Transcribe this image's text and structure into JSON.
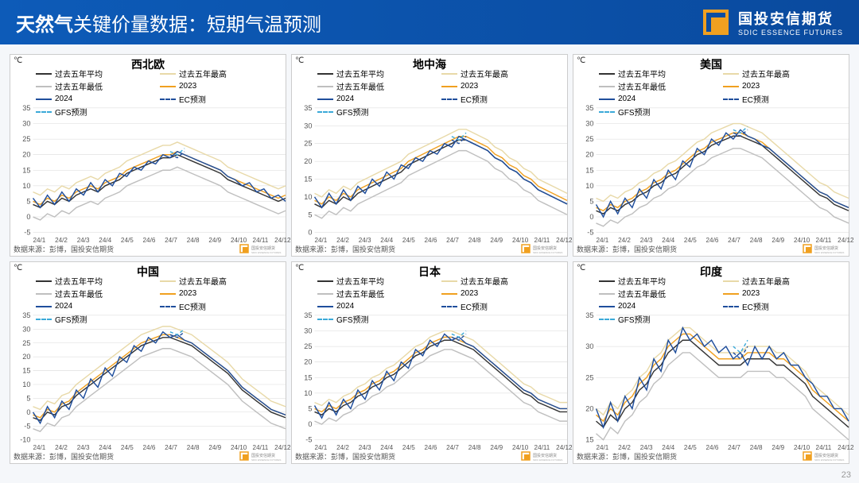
{
  "header": {
    "title_bold": "天然气",
    "title_rest": "关键价量数据：短期气温预测",
    "logo_name": "国投安信期货",
    "logo_sub": "SDIC ESSENCE FUTURES",
    "logo_border": "#f0a020",
    "bg_start": "#0d5bb8",
    "bg_end": "#0a4a9e"
  },
  "page_number": "23",
  "common": {
    "y_unit": "℃",
    "source_label": "数据来源：彭博，国投安信期货",
    "mini_logo_label": "国投安信期货",
    "x_labels": [
      "24/1",
      "24/2",
      "24/3",
      "24/4",
      "24/5",
      "24/6",
      "24/7",
      "24/8",
      "24/9",
      "24/10",
      "24/11",
      "24/12"
    ],
    "legend": [
      {
        "label": "过去五年平均",
        "color": "#333333",
        "dashed": false
      },
      {
        "label": "过去五年最高",
        "color": "#e8d9a8",
        "dashed": false
      },
      {
        "label": "过去五年最低",
        "color": "#bfbfbf",
        "dashed": false
      },
      {
        "label": "2023",
        "color": "#f0a020",
        "dashed": false
      },
      {
        "label": "2024",
        "color": "#1f4e9c",
        "dashed": false
      },
      {
        "label": "EC预测",
        "color": "#1f4e9c",
        "dashed": true
      },
      {
        "label": "GFS预测",
        "color": "#3aa9d8",
        "dashed": true
      }
    ],
    "grid_color": "#d9d9d9",
    "axis_color": "#666666",
    "tick_fontsize": 9,
    "plot_bg": "#ffffff"
  },
  "panels": [
    {
      "title": "西北欧",
      "ylim": [
        -5,
        35
      ],
      "ytick_step": 5,
      "series": {
        "avg": [
          4,
          3,
          5,
          4,
          6,
          5,
          7,
          8,
          9,
          8,
          10,
          11,
          12,
          14,
          15,
          16,
          17,
          18,
          19,
          19,
          20,
          19,
          18,
          17,
          16,
          15,
          14,
          12,
          11,
          10,
          9,
          8,
          7,
          6,
          5,
          6
        ],
        "high": [
          8,
          7,
          9,
          8,
          10,
          9,
          11,
          12,
          13,
          12,
          14,
          15,
          16,
          18,
          19,
          20,
          21,
          22,
          23,
          23,
          24,
          23,
          22,
          21,
          20,
          19,
          18,
          16,
          15,
          14,
          13,
          12,
          11,
          10,
          9,
          10
        ],
        "low": [
          0,
          -1,
          1,
          0,
          2,
          1,
          3,
          4,
          5,
          4,
          6,
          7,
          8,
          10,
          11,
          12,
          13,
          14,
          15,
          15,
          16,
          15,
          14,
          13,
          12,
          11,
          10,
          8,
          7,
          6,
          5,
          4,
          3,
          2,
          1,
          2
        ],
        "y2023": [
          5,
          4,
          6,
          5,
          7,
          6,
          8,
          9,
          10,
          9,
          11,
          12,
          13,
          15,
          16,
          17,
          18,
          19,
          20,
          20,
          21,
          20,
          19,
          18,
          17,
          16,
          15,
          13,
          12,
          11,
          10,
          9,
          8,
          7,
          6,
          7
        ],
        "y2024": [
          6,
          3,
          7,
          4,
          8,
          5,
          9,
          7,
          11,
          8,
          12,
          10,
          14,
          13,
          16,
          15,
          18,
          17,
          20,
          19,
          21,
          20,
          19,
          18,
          17,
          16,
          15,
          13,
          12,
          10,
          11,
          8,
          9,
          6,
          7,
          5
        ],
        "ec": [
          20,
          19,
          21
        ],
        "gfs": [
          21,
          20,
          22
        ]
      }
    },
    {
      "title": "地中海",
      "ylim": [
        0,
        35
      ],
      "ytick_step": 5,
      "series": {
        "avg": [
          8,
          7,
          9,
          8,
          10,
          9,
          11,
          12,
          13,
          14,
          15,
          16,
          17,
          19,
          20,
          21,
          22,
          23,
          24,
          25,
          26,
          26,
          25,
          24,
          23,
          21,
          20,
          18,
          17,
          15,
          14,
          12,
          11,
          10,
          9,
          8
        ],
        "high": [
          11,
          10,
          12,
          11,
          13,
          12,
          14,
          15,
          16,
          17,
          18,
          19,
          20,
          22,
          23,
          24,
          25,
          26,
          27,
          28,
          29,
          29,
          28,
          27,
          26,
          24,
          23,
          21,
          20,
          18,
          17,
          15,
          14,
          13,
          12,
          11
        ],
        "low": [
          5,
          4,
          6,
          5,
          7,
          6,
          8,
          9,
          10,
          11,
          12,
          13,
          14,
          16,
          17,
          18,
          19,
          20,
          21,
          22,
          23,
          23,
          22,
          21,
          20,
          18,
          17,
          15,
          14,
          12,
          11,
          9,
          8,
          7,
          6,
          5
        ],
        "y2023": [
          9,
          8,
          10,
          9,
          11,
          10,
          12,
          13,
          14,
          15,
          16,
          17,
          18,
          20,
          21,
          22,
          23,
          24,
          25,
          26,
          27,
          27,
          26,
          25,
          24,
          22,
          21,
          19,
          18,
          16,
          15,
          13,
          12,
          11,
          10,
          9
        ],
        "y2024": [
          10,
          7,
          11,
          8,
          12,
          9,
          13,
          11,
          15,
          13,
          17,
          15,
          19,
          18,
          21,
          20,
          23,
          22,
          25,
          24,
          27,
          26,
          25,
          24,
          23,
          21,
          20,
          18,
          17,
          15,
          14,
          12,
          11,
          10,
          9,
          8
        ],
        "ec": [
          26,
          25,
          27
        ],
        "gfs": [
          27,
          26,
          28
        ]
      }
    },
    {
      "title": "美国",
      "ylim": [
        -5,
        35
      ],
      "ytick_step": 5,
      "series": {
        "avg": [
          2,
          1,
          3,
          2,
          4,
          5,
          7,
          8,
          10,
          11,
          13,
          14,
          16,
          18,
          20,
          21,
          23,
          24,
          25,
          26,
          26,
          25,
          24,
          23,
          21,
          19,
          17,
          15,
          13,
          11,
          9,
          7,
          6,
          4,
          3,
          2
        ],
        "high": [
          6,
          5,
          7,
          6,
          8,
          9,
          11,
          12,
          14,
          15,
          17,
          18,
          20,
          22,
          24,
          25,
          27,
          28,
          29,
          30,
          30,
          29,
          28,
          27,
          25,
          23,
          21,
          19,
          17,
          15,
          13,
          11,
          10,
          8,
          7,
          6
        ],
        "low": [
          -2,
          -3,
          -1,
          -2,
          0,
          1,
          3,
          4,
          6,
          7,
          9,
          10,
          12,
          14,
          16,
          17,
          19,
          20,
          21,
          22,
          22,
          21,
          20,
          19,
          17,
          15,
          13,
          11,
          9,
          7,
          5,
          3,
          2,
          0,
          -1,
          -2
        ],
        "y2023": [
          3,
          2,
          4,
          3,
          5,
          6,
          8,
          9,
          11,
          12,
          14,
          15,
          17,
          19,
          21,
          22,
          24,
          25,
          26,
          27,
          27,
          26,
          25,
          24,
          22,
          20,
          18,
          16,
          14,
          12,
          10,
          8,
          7,
          5,
          4,
          3
        ],
        "y2024": [
          4,
          0,
          5,
          1,
          6,
          3,
          9,
          6,
          12,
          9,
          15,
          12,
          18,
          16,
          22,
          20,
          25,
          23,
          27,
          25,
          28,
          26,
          25,
          23,
          22,
          20,
          18,
          16,
          14,
          12,
          10,
          8,
          7,
          5,
          4,
          3
        ],
        "ec": [
          27,
          26,
          28
        ],
        "gfs": [
          28,
          27,
          29
        ]
      }
    },
    {
      "title": "中国",
      "ylim": [
        -10,
        35
      ],
      "ytick_step": 5,
      "series": {
        "avg": [
          -2,
          -3,
          0,
          -1,
          2,
          3,
          6,
          8,
          10,
          12,
          14,
          16,
          18,
          20,
          22,
          24,
          25,
          26,
          27,
          27,
          26,
          25,
          24,
          22,
          20,
          18,
          16,
          14,
          11,
          8,
          6,
          4,
          2,
          0,
          -1,
          -2
        ],
        "high": [
          2,
          1,
          4,
          3,
          6,
          7,
          10,
          12,
          14,
          16,
          18,
          20,
          22,
          24,
          26,
          28,
          29,
          30,
          31,
          31,
          30,
          29,
          28,
          26,
          24,
          22,
          20,
          18,
          15,
          12,
          10,
          8,
          6,
          4,
          3,
          2
        ],
        "low": [
          -6,
          -7,
          -4,
          -5,
          -2,
          -1,
          2,
          4,
          6,
          8,
          10,
          12,
          14,
          16,
          18,
          20,
          21,
          22,
          23,
          23,
          22,
          21,
          20,
          18,
          16,
          14,
          12,
          10,
          7,
          4,
          2,
          0,
          -2,
          -4,
          -5,
          -6
        ],
        "y2023": [
          -1,
          -2,
          1,
          0,
          3,
          4,
          7,
          9,
          11,
          13,
          15,
          17,
          19,
          21,
          23,
          25,
          26,
          27,
          28,
          28,
          27,
          26,
          25,
          23,
          21,
          19,
          17,
          15,
          12,
          9,
          7,
          5,
          3,
          1,
          0,
          -1
        ],
        "y2024": [
          0,
          -4,
          2,
          -2,
          4,
          1,
          8,
          5,
          12,
          9,
          16,
          13,
          20,
          18,
          24,
          22,
          27,
          25,
          29,
          27,
          28,
          26,
          25,
          23,
          21,
          19,
          17,
          15,
          12,
          9,
          7,
          5,
          3,
          1,
          0,
          -1
        ],
        "ec": [
          28,
          27,
          29
        ],
        "gfs": [
          29,
          28,
          30
        ]
      }
    },
    {
      "title": "日本",
      "ylim": [
        -5,
        35
      ],
      "ytick_step": 5,
      "series": {
        "avg": [
          4,
          3,
          5,
          4,
          6,
          7,
          9,
          10,
          12,
          13,
          15,
          16,
          18,
          20,
          22,
          23,
          25,
          26,
          27,
          27,
          26,
          25,
          24,
          22,
          20,
          18,
          16,
          14,
          12,
          10,
          9,
          7,
          6,
          5,
          4,
          4
        ],
        "high": [
          7,
          6,
          8,
          7,
          9,
          10,
          12,
          13,
          15,
          16,
          18,
          19,
          21,
          23,
          25,
          26,
          28,
          29,
          30,
          30,
          29,
          28,
          27,
          25,
          23,
          21,
          19,
          17,
          15,
          13,
          12,
          10,
          9,
          8,
          7,
          7
        ],
        "low": [
          1,
          0,
          2,
          1,
          3,
          4,
          6,
          7,
          9,
          10,
          12,
          13,
          15,
          17,
          19,
          20,
          22,
          23,
          24,
          24,
          23,
          22,
          21,
          19,
          17,
          15,
          13,
          11,
          9,
          7,
          6,
          4,
          3,
          2,
          1,
          1
        ],
        "y2023": [
          5,
          4,
          6,
          5,
          7,
          8,
          10,
          11,
          13,
          14,
          16,
          17,
          19,
          21,
          23,
          24,
          26,
          27,
          28,
          28,
          27,
          26,
          25,
          23,
          21,
          19,
          17,
          15,
          13,
          11,
          10,
          8,
          7,
          6,
          5,
          5
        ],
        "y2024": [
          6,
          2,
          7,
          3,
          8,
          5,
          11,
          8,
          14,
          11,
          17,
          14,
          20,
          18,
          24,
          22,
          27,
          25,
          29,
          27,
          28,
          26,
          25,
          23,
          21,
          19,
          17,
          15,
          13,
          11,
          10,
          8,
          7,
          6,
          5,
          5
        ],
        "ec": [
          28,
          27,
          29
        ],
        "gfs": [
          29,
          28,
          30
        ]
      }
    },
    {
      "title": "印度",
      "ylim": [
        15,
        35
      ],
      "ytick_step": 5,
      "series": {
        "avg": [
          18,
          17,
          19,
          18,
          20,
          21,
          23,
          24,
          26,
          27,
          29,
          30,
          31,
          31,
          30,
          29,
          28,
          27,
          27,
          27,
          27,
          28,
          28,
          28,
          28,
          27,
          27,
          26,
          25,
          24,
          22,
          21,
          20,
          19,
          18,
          17
        ],
        "high": [
          20,
          19,
          21,
          20,
          22,
          23,
          25,
          26,
          28,
          29,
          31,
          32,
          33,
          33,
          32,
          31,
          30,
          29,
          29,
          29,
          29,
          30,
          30,
          30,
          30,
          29,
          29,
          28,
          27,
          26,
          24,
          23,
          22,
          21,
          20,
          19
        ],
        "low": [
          16,
          15,
          17,
          16,
          18,
          19,
          21,
          22,
          24,
          25,
          27,
          28,
          29,
          29,
          28,
          27,
          26,
          25,
          25,
          25,
          25,
          26,
          26,
          26,
          26,
          25,
          25,
          24,
          23,
          22,
          20,
          19,
          18,
          17,
          16,
          15
        ],
        "y2023": [
          19,
          18,
          20,
          19,
          21,
          22,
          24,
          25,
          27,
          28,
          30,
          31,
          32,
          32,
          31,
          30,
          29,
          28,
          28,
          28,
          28,
          29,
          29,
          29,
          29,
          28,
          28,
          27,
          26,
          25,
          23,
          22,
          21,
          20,
          19,
          18
        ],
        "y2024": [
          20,
          17,
          21,
          18,
          22,
          20,
          25,
          23,
          28,
          26,
          31,
          29,
          33,
          31,
          32,
          30,
          31,
          29,
          30,
          28,
          29,
          27,
          30,
          28,
          30,
          28,
          29,
          27,
          27,
          25,
          24,
          22,
          22,
          20,
          20,
          18
        ],
        "ec": [
          29,
          28,
          30
        ],
        "gfs": [
          30,
          29,
          31
        ]
      }
    }
  ]
}
